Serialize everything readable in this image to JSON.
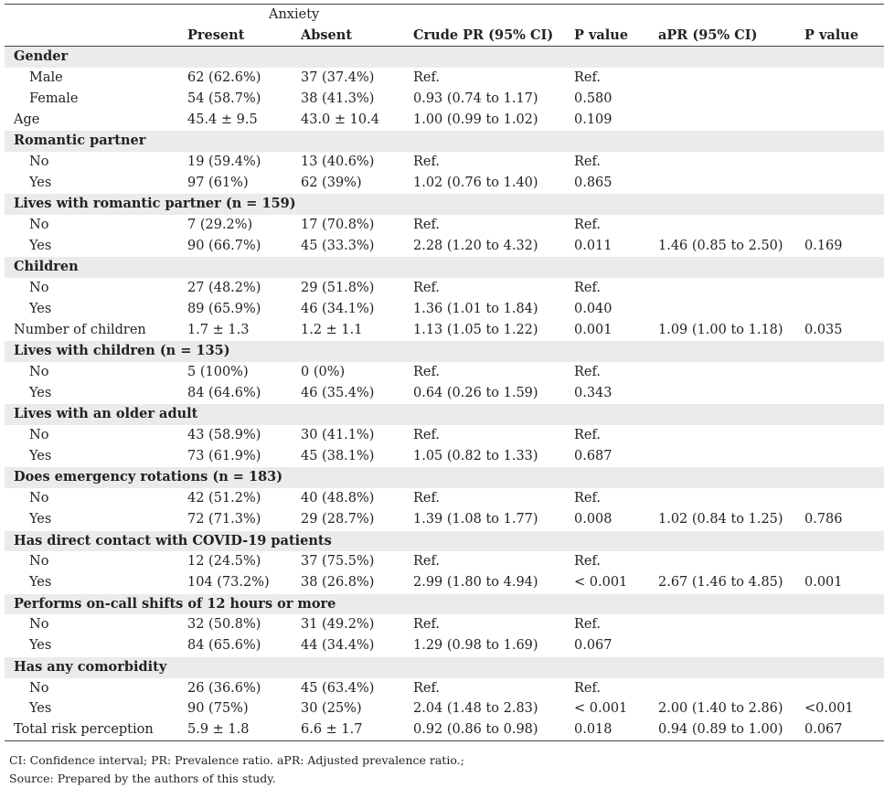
{
  "group_header": "Anxiety",
  "columns": [
    "Present",
    "Absent",
    "Crude PR (95% CI)",
    "P value",
    "aPR (95% CI)",
    "P value"
  ],
  "rows": [
    {
      "type": "section",
      "label": "Gender"
    },
    {
      "type": "sub",
      "label": "Male",
      "cells": [
        "62 (62.6%)",
        "37 (37.4%)",
        "Ref.",
        "Ref.",
        "",
        ""
      ]
    },
    {
      "type": "sub",
      "label": "Female",
      "cells": [
        "54 (58.7%)",
        "38 (41.3%)",
        "0.93 (0.74 to 1.17)",
        "0.580",
        "",
        ""
      ]
    },
    {
      "type": "var",
      "label": "Age",
      "cells": [
        "45.4 ± 9.5",
        "43.0 ± 10.4",
        "1.00 (0.99 to 1.02)",
        "0.109",
        "",
        ""
      ]
    },
    {
      "type": "section",
      "label": "Romantic partner"
    },
    {
      "type": "sub",
      "label": "No",
      "cells": [
        "19 (59.4%)",
        "13 (40.6%)",
        "Ref.",
        "Ref.",
        "",
        ""
      ]
    },
    {
      "type": "sub",
      "label": "Yes",
      "cells": [
        "97 (61%)",
        "62 (39%)",
        "1.02 (0.76 to 1.40)",
        "0.865",
        "",
        ""
      ]
    },
    {
      "type": "section",
      "label": "Lives with romantic partner (n = 159)"
    },
    {
      "type": "sub",
      "label": "No",
      "cells": [
        "7 (29.2%)",
        "17 (70.8%)",
        "Ref.",
        "Ref.",
        "",
        ""
      ]
    },
    {
      "type": "sub",
      "label": "Yes",
      "cells": [
        "90 (66.7%)",
        "45 (33.3%)",
        "2.28 (1.20 to 4.32)",
        "0.011",
        "1.46 (0.85 to 2.50)",
        "0.169"
      ]
    },
    {
      "type": "section",
      "label": "Children"
    },
    {
      "type": "sub",
      "label": "No",
      "cells": [
        "27 (48.2%)",
        "29 (51.8%)",
        "Ref.",
        "Ref.",
        "",
        ""
      ]
    },
    {
      "type": "sub",
      "label": "Yes",
      "cells": [
        "89 (65.9%)",
        "46 (34.1%)",
        "1.36 (1.01 to 1.84)",
        "0.040",
        "",
        ""
      ]
    },
    {
      "type": "var",
      "label": "Number of children",
      "cells": [
        "1.7 ± 1.3",
        "1.2 ± 1.1",
        "1.13 (1.05 to 1.22)",
        "0.001",
        "1.09 (1.00 to 1.18)",
        "0.035"
      ],
      "bold_cells": [
        3
      ]
    },
    {
      "type": "section",
      "label": "Lives with children (n = 135)"
    },
    {
      "type": "sub",
      "label": "No",
      "cells": [
        "5 (100%)",
        "0 (0%)",
        "Ref.",
        "Ref.",
        "",
        ""
      ]
    },
    {
      "type": "sub",
      "label": "Yes",
      "cells": [
        "84 (64.6%)",
        "46 (35.4%)",
        "0.64 (0.26 to 1.59)",
        "0.343",
        "",
        ""
      ]
    },
    {
      "type": "section",
      "label": "Lives with an older adult"
    },
    {
      "type": "sub",
      "label": "No",
      "cells": [
        "43 (58.9%)",
        "30 (41.1%)",
        "Ref.",
        "Ref.",
        "",
        ""
      ]
    },
    {
      "type": "sub",
      "label": "Yes",
      "cells": [
        "73 (61.9%)",
        "45 (38.1%)",
        "1.05 (0.82 to 1.33)",
        "0.687",
        "",
        ""
      ]
    },
    {
      "type": "section",
      "label": "Does emergency rotations (n = 183)"
    },
    {
      "type": "sub",
      "label": "No",
      "cells": [
        "42 (51.2%)",
        "40 (48.8%)",
        "Ref.",
        "Ref.",
        "",
        ""
      ]
    },
    {
      "type": "sub",
      "label": "Yes",
      "cells": [
        "72 (71.3%)",
        "29 (28.7%)",
        "1.39 (1.08 to 1.77)",
        "0.008",
        "1.02 (0.84 to 1.25)",
        "0.786"
      ]
    },
    {
      "type": "section",
      "label": "Has direct contact with COVID-19 patients"
    },
    {
      "type": "sub",
      "label": "No",
      "cells": [
        "12 (24.5%)",
        "37 (75.5%)",
        "Ref.",
        "Ref.",
        "",
        ""
      ]
    },
    {
      "type": "sub",
      "label": "Yes",
      "cells": [
        "104 (73.2%)",
        "38 (26.8%)",
        "2.99 (1.80 to 4.94)",
        "< 0.001",
        "2.67 (1.46 to 4.85)",
        "0.001"
      ],
      "bold_cells": [
        3
      ]
    },
    {
      "type": "section",
      "label": "Performs on-call shifts of 12 hours or more"
    },
    {
      "type": "sub",
      "label": "No",
      "cells": [
        "32 (50.8%)",
        "31 (49.2%)",
        "Ref.",
        "Ref.",
        "",
        ""
      ]
    },
    {
      "type": "sub",
      "label": "Yes",
      "cells": [
        "84 (65.6%)",
        "44 (34.4%)",
        "1.29 (0.98 to 1.69)",
        "0.067",
        "",
        ""
      ]
    },
    {
      "type": "section",
      "label": "Has any comorbidity"
    },
    {
      "type": "sub",
      "label": "No",
      "cells": [
        "26 (36.6%)",
        "45 (63.4%)",
        "Ref.",
        "Ref.",
        "",
        ""
      ]
    },
    {
      "type": "sub",
      "label": "Yes",
      "cells": [
        "90 (75%)",
        "30 (25%)",
        "2.04 (1.48 to 2.83)",
        "< 0.001",
        "2.00 (1.40 to 2.86)",
        "<0.001"
      ],
      "bold_cells": [
        3
      ]
    },
    {
      "type": "var",
      "label": "Total risk perception",
      "cells": [
        "5.9 ± 1.8",
        "6.6 ± 1.7",
        "0.92 (0.86 to 0.98)",
        "0.018",
        "0.94 (0.89 to 1.00)",
        "0.067"
      ],
      "last": true
    }
  ],
  "footnotes": [
    "CI: Confidence interval; PR: Prevalence ratio. aPR: Adjusted prevalence ratio.;",
    "Source: Prepared by the authors of this study."
  ]
}
